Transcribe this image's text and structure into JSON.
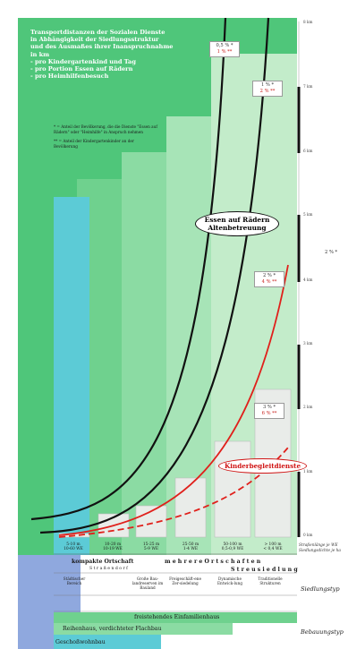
{
  "title": {
    "lines": [
      "Transportdistanzen der Sozialen Dienste",
      "in Abhängigkeit der Siedlungsstruktur",
      "und des Ausmaßes ihrer Inanspruchnahme",
      "in km",
      "- pro Kindergartenkind und Tag",
      "- pro Portion Essen auf Rädern",
      "- pro Heimhilfenbesuch"
    ]
  },
  "notes": {
    "note1": "* = Anteil der Bevölkerung, die die Dienste \"Essen auf Rädern\" oder \"Heimhilfe\" in Anspruch nehmen",
    "note2": "** = Anteil der Kindergartenkinder an der Bevölkerung"
  },
  "legend_boxes": [
    {
      "a": "0,5 % *",
      "b": "1 % **"
    },
    {
      "a": "1 % *",
      "b": "2 % **"
    },
    {
      "a": "2 % *",
      "b": "4 % **"
    },
    {
      "a": "3 % *",
      "b": "6 % **"
    }
  ],
  "side_marker": "2 % *",
  "curve_labels": {
    "black": [
      "Essen auf Rädern",
      "Altenbetreuung"
    ],
    "red": "Kinderbegleitdienste"
  },
  "axis": {
    "unit": "km",
    "ticks": [
      "8 km",
      "7 km",
      "6 km",
      "5 km",
      "4 km",
      "3 km",
      "2 km",
      "1 km",
      "0 km"
    ]
  },
  "categories": [
    {
      "l1": "5-10 m",
      "l2": "10-60 WE"
    },
    {
      "l1": "10-20 m",
      "l2": "10-19 WE"
    },
    {
      "l1": "15-25 m",
      "l2": "5-9 WE"
    },
    {
      "l1": "25-50 m",
      "l2": "1-4 WE"
    },
    {
      "l1": "50-100 m",
      "l2": "0,5-0,9 WE"
    },
    {
      "l1": "> 100 m",
      "l2": "< 0,4 WE"
    }
  ],
  "row_labels": {
    "axis_note_1": "Straßenlänge je WE",
    "axis_note_2": "Siedlungsdichte je ha",
    "siedlungstyp": "Siedlungstyp",
    "bebauungstyp": "Bebauungstyp"
  },
  "settlement": {
    "kompakte": "kompakte Ortschaft",
    "mehrere": "m e h r e r e   O r t s c h a f t e n",
    "strassendorf": "S t r a ß e n d o r f",
    "streusiedlung": "S t r e u s i e d l u n g",
    "subtypes": [
      "Städtischer Bereich",
      "Große Bau-landreserven im Bauland",
      "Freigeschäft-ene Zer-siedelung",
      "Dynamische Entwick-lung",
      "Traditionelle Strukturen"
    ]
  },
  "building": {
    "freistehend": "freistehendes Einfamilienhaus",
    "reihenhaus": "Reihenhaus, verdichteter Flachbau",
    "geschoss": "Geschoßwohnbau"
  },
  "chart_data": {
    "type": "line",
    "xlabel": "Straßenlänge je WE / Siedlungsdichte je ha",
    "ylabel": "",
    "x_categories": [
      "5-10 m",
      "10-20 m",
      "15-25 m",
      "25-50 m",
      "50-100 m",
      "> 100 m"
    ],
    "ylim": [
      0,
      8
    ],
    "series": [
      {
        "name": "Essen auf Rädern / Altenbetreuung",
        "marker": "0,5 % *",
        "values": [
          0.1,
          0.22,
          0.5,
          1.3,
          3.4,
          8.0
        ]
      },
      {
        "name": "Essen auf Rädern / Altenbetreuung",
        "marker": "1 % *",
        "values": [
          0.08,
          0.17,
          0.38,
          1.0,
          2.6,
          7.0
        ]
      },
      {
        "name": "Kinderbegleitdienste",
        "marker": "2 % *",
        "values": [
          0.05,
          0.12,
          0.26,
          0.6,
          1.4,
          4.0
        ]
      },
      {
        "name": "Kinderbegleitdienste",
        "marker": "3 % *",
        "values": [
          0.04,
          0.09,
          0.19,
          0.42,
          0.9,
          2.2
        ]
      }
    ],
    "bar_values": [
      0.04,
      0.1,
      0.22,
      0.5,
      1.45,
      2.55
    ]
  }
}
